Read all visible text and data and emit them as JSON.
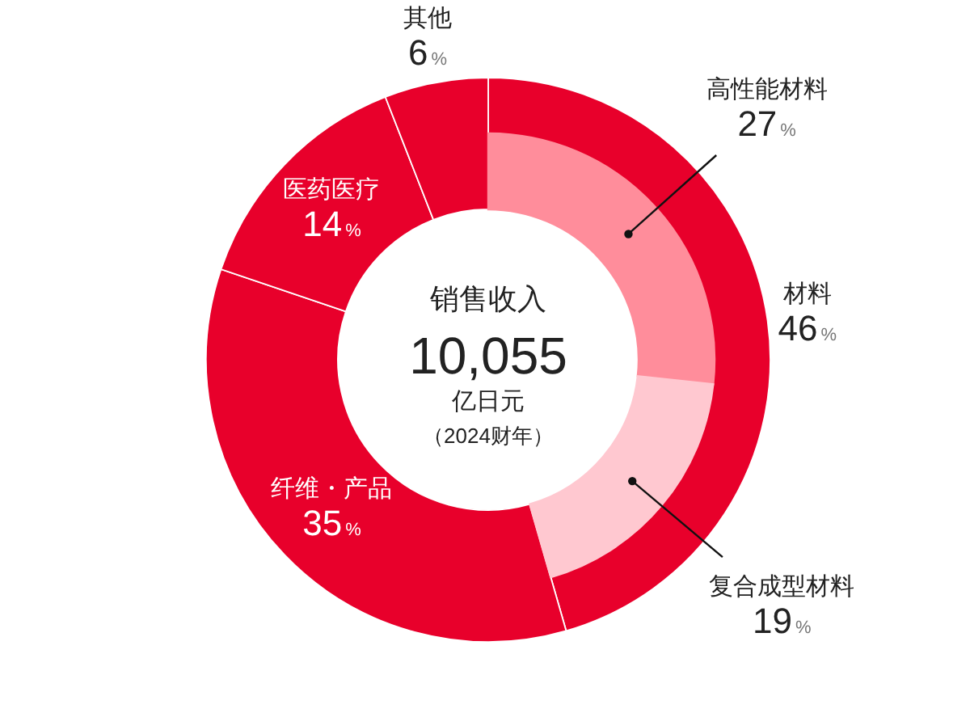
{
  "chart_data": [
    {
      "type": "donut",
      "title": "销售收入",
      "annotations": [
        "10,055",
        "亿日元",
        "（2024财年）"
      ],
      "categories": [
        "材料",
        "纤维・产品",
        "医药医疗",
        "其他"
      ],
      "values": [
        46,
        35,
        14,
        6
      ],
      "colors": [
        "#e8002b",
        "#e8002b",
        "#e8002b",
        "#e8002b"
      ],
      "value_labels": [
        "46%",
        "35%",
        "14%",
        "6%"
      ]
    },
    {
      "type": "donut",
      "categories": [
        "高性能材料",
        "复合成型材料"
      ],
      "values": [
        27,
        19
      ],
      "colors": [
        "#ff8d9b",
        "#ffc8d0"
      ],
      "value_labels": [
        "27%",
        "19%"
      ]
    }
  ]
}
